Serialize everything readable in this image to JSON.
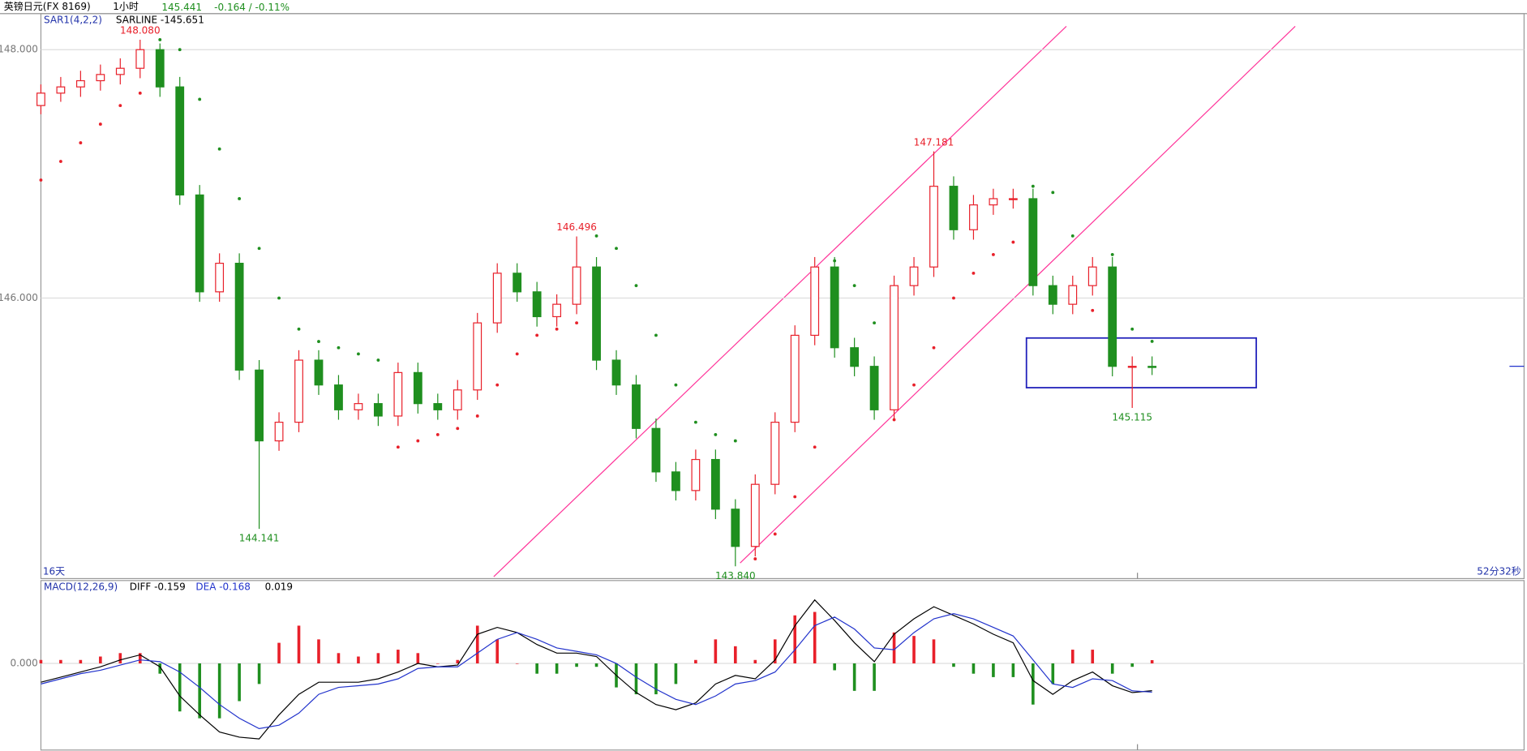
{
  "chart_data": {
    "type": "candlestick",
    "symbol": "英镑日元(FX 8169)",
    "period": "1小时",
    "last": 145.441,
    "change": "-0.164 / -0.11%",
    "indicator": "SAR1(4,2,2)",
    "sar_label": "SARLINE -145.651",
    "ylim": [
      143.741,
      148.29
    ],
    "yticks": [
      {
        "value": 148,
        "label": "148.000"
      },
      {
        "value": 146,
        "label": "146.000"
      }
    ],
    "grid": true,
    "up_color": "#e8202a",
    "down_color": "#1f8f1f",
    "candles": [
      [
        147.55,
        147.72,
        147.48,
        147.65
      ],
      [
        147.65,
        147.78,
        147.58,
        147.7
      ],
      [
        147.7,
        147.83,
        147.62,
        147.75
      ],
      [
        147.75,
        147.88,
        147.67,
        147.8
      ],
      [
        147.8,
        147.93,
        147.72,
        147.85
      ],
      [
        147.85,
        148.08,
        147.77,
        148.0
      ],
      [
        148.0,
        148.05,
        147.62,
        147.7
      ],
      [
        147.7,
        147.78,
        146.75,
        146.83
      ],
      [
        146.83,
        146.91,
        145.97,
        146.05
      ],
      [
        146.05,
        146.36,
        145.97,
        146.28
      ],
      [
        146.28,
        146.36,
        145.34,
        145.42
      ],
      [
        145.42,
        145.5,
        144.141,
        144.85
      ],
      [
        144.85,
        145.08,
        144.77,
        145.0
      ],
      [
        145.0,
        145.58,
        144.92,
        145.5
      ],
      [
        145.5,
        145.58,
        145.22,
        145.3
      ],
      [
        145.3,
        145.38,
        145.02,
        145.1
      ],
      [
        145.1,
        145.23,
        145.02,
        145.15
      ],
      [
        145.15,
        145.23,
        144.97,
        145.05
      ],
      [
        145.05,
        145.48,
        144.97,
        145.4
      ],
      [
        145.4,
        145.48,
        145.07,
        145.15
      ],
      [
        145.15,
        145.23,
        145.02,
        145.1
      ],
      [
        145.1,
        145.34,
        145.02,
        145.26
      ],
      [
        145.26,
        145.88,
        145.18,
        145.8
      ],
      [
        145.8,
        146.28,
        145.72,
        146.2
      ],
      [
        146.2,
        146.28,
        145.97,
        146.05
      ],
      [
        146.05,
        146.13,
        145.77,
        145.85
      ],
      [
        145.85,
        146.03,
        145.77,
        145.95
      ],
      [
        145.95,
        146.496,
        145.87,
        146.25
      ],
      [
        146.25,
        146.33,
        145.42,
        145.5
      ],
      [
        145.5,
        145.58,
        145.22,
        145.3
      ],
      [
        145.3,
        145.38,
        144.87,
        144.95
      ],
      [
        144.95,
        145.03,
        144.52,
        144.6
      ],
      [
        144.6,
        144.68,
        144.37,
        144.45
      ],
      [
        144.45,
        144.78,
        144.37,
        144.7
      ],
      [
        144.7,
        144.78,
        144.22,
        144.3
      ],
      [
        144.3,
        144.38,
        143.84,
        144.0
      ],
      [
        144.0,
        144.58,
        143.92,
        144.5
      ],
      [
        144.5,
        145.08,
        144.42,
        145.0
      ],
      [
        145.0,
        145.78,
        144.92,
        145.7
      ],
      [
        145.7,
        146.33,
        145.62,
        146.25
      ],
      [
        146.25,
        146.33,
        145.52,
        145.6
      ],
      [
        145.6,
        145.68,
        145.37,
        145.45
      ],
      [
        145.45,
        145.53,
        145.02,
        145.1
      ],
      [
        145.1,
        146.18,
        145.02,
        146.1
      ],
      [
        146.1,
        146.33,
        146.02,
        146.25
      ],
      [
        146.25,
        147.181,
        146.17,
        146.9
      ],
      [
        146.9,
        146.98,
        146.47,
        146.55
      ],
      [
        146.55,
        146.83,
        146.47,
        146.75
      ],
      [
        146.75,
        146.88,
        146.67,
        146.8
      ],
      [
        146.8,
        146.88,
        146.72,
        146.8
      ],
      [
        146.8,
        146.88,
        146.02,
        146.1
      ],
      [
        146.1,
        146.18,
        145.87,
        145.95
      ],
      [
        145.95,
        146.18,
        145.87,
        146.1
      ],
      [
        146.1,
        146.33,
        146.02,
        146.25
      ],
      [
        146.25,
        146.33,
        145.37,
        145.45
      ],
      [
        145.45,
        145.53,
        145.115,
        145.45
      ],
      [
        145.45,
        145.53,
        145.38,
        145.441
      ]
    ],
    "sar": [
      146.95,
      147.1,
      147.25,
      147.4,
      147.55,
      147.65,
      148.08,
      148.0,
      147.6,
      147.2,
      146.8,
      146.4,
      146.0,
      145.75,
      145.65,
      145.6,
      145.55,
      145.5,
      144.8,
      144.85,
      144.9,
      144.95,
      145.05,
      145.3,
      145.55,
      145.7,
      145.75,
      145.8,
      146.5,
      146.4,
      146.1,
      145.7,
      145.3,
      145.0,
      144.9,
      144.85,
      143.9,
      144.1,
      144.4,
      144.8,
      146.3,
      146.1,
      145.8,
      145.02,
      145.3,
      145.6,
      146.0,
      146.2,
      146.35,
      146.45,
      146.9,
      146.85,
      146.5,
      145.9,
      146.35,
      145.75,
      145.651
    ],
    "annotations": [
      {
        "value": 148.08,
        "label": "148.080"
      },
      {
        "value": 146.496,
        "label": "146.496"
      },
      {
        "value": 147.181,
        "label": "147.181"
      },
      {
        "value": 144.141,
        "label": "144.141"
      },
      {
        "value": 143.84,
        "label": "143.840"
      },
      {
        "value": 145.115,
        "label": "145.115"
      }
    ],
    "left_label": "16天",
    "right_label": "52分32秒",
    "macd": {
      "title": "MACD(12,26,9)",
      "diff_label": "DIFF -0.159",
      "dea_label": "DEA -0.168",
      "ylim": [
        -0.505,
        0.483
      ],
      "yticks": [
        {
          "value": 0,
          "label": "0.000"
        }
      ],
      "diff_color": "#000000",
      "dea_color": "#2233cc",
      "diff": [
        -0.11,
        -0.08,
        -0.05,
        -0.02,
        0.02,
        0.05,
        -0.02,
        -0.19,
        -0.3,
        -0.4,
        -0.43,
        -0.44,
        -0.3,
        -0.18,
        -0.11,
        -0.11,
        -0.11,
        -0.09,
        -0.05,
        0.0,
        -0.02,
        -0.01,
        0.17,
        0.21,
        0.18,
        0.11,
        0.06,
        0.06,
        0.04,
        -0.07,
        -0.17,
        -0.24,
        -0.27,
        -0.23,
        -0.12,
        -0.07,
        -0.09,
        0.02,
        0.22,
        0.37,
        0.25,
        0.12,
        0.01,
        0.17,
        0.26,
        0.33,
        0.28,
        0.23,
        0.17,
        0.12,
        -0.1,
        -0.18,
        -0.1,
        -0.05,
        -0.13,
        -0.17,
        -0.159
      ],
      "dea": [
        -0.12,
        -0.09,
        -0.06,
        -0.04,
        -0.01,
        0.02,
        0.01,
        -0.05,
        -0.14,
        -0.24,
        -0.32,
        -0.38,
        -0.36,
        -0.29,
        -0.18,
        -0.14,
        -0.13,
        -0.12,
        -0.09,
        -0.03,
        -0.02,
        -0.02,
        0.06,
        0.14,
        0.18,
        0.14,
        0.09,
        0.07,
        0.05,
        0.0,
        -0.08,
        -0.15,
        -0.21,
        -0.24,
        -0.19,
        -0.12,
        -0.1,
        -0.05,
        0.08,
        0.22,
        0.27,
        0.2,
        0.09,
        0.08,
        0.18,
        0.26,
        0.29,
        0.26,
        0.21,
        0.16,
        0.02,
        -0.12,
        -0.14,
        -0.09,
        -0.1,
        -0.16,
        -0.168
      ],
      "hist": [
        0.02,
        0.02,
        0.02,
        0.04,
        0.06,
        0.06,
        -0.06,
        -0.28,
        -0.32,
        -0.32,
        -0.22,
        -0.12,
        0.12,
        0.22,
        0.14,
        0.06,
        0.04,
        0.06,
        0.08,
        0.06,
        0.0,
        0.02,
        0.22,
        0.14,
        0.0,
        -0.06,
        -0.06,
        -0.02,
        -0.02,
        -0.14,
        -0.18,
        -0.18,
        -0.12,
        0.02,
        0.14,
        0.1,
        0.02,
        0.14,
        0.28,
        0.3,
        -0.04,
        -0.16,
        -0.16,
        0.18,
        0.16,
        0.14,
        -0.02,
        -0.06,
        -0.08,
        -0.08,
        -0.24,
        -0.12,
        0.08,
        0.08,
        -0.06,
        -0.02,
        0.019
      ]
    }
  }
}
